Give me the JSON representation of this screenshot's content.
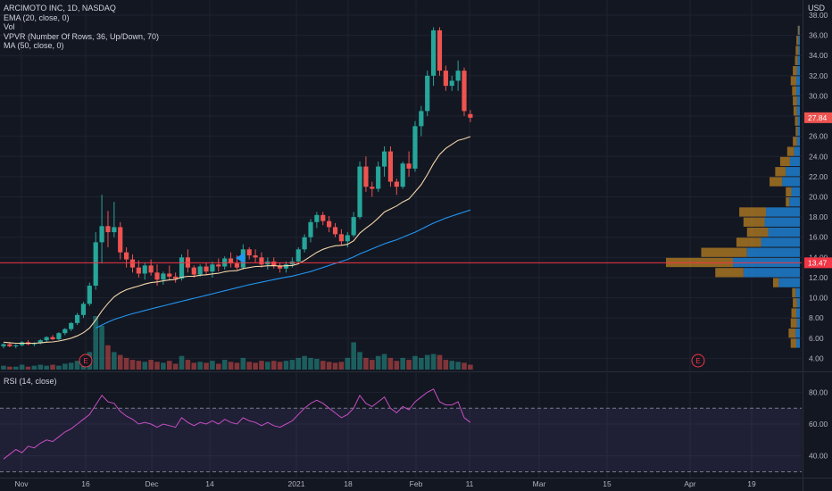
{
  "legend": {
    "title": "ARCIMOTO INC, 1D, NASDAQ",
    "ema": "EMA (20, close, 0)",
    "vol": "Vol",
    "vpvr": "VPVR (Number Of Rows, 36, Up/Down, 70)",
    "ma": "MA (50, close, 0)"
  },
  "rsi_label": "RSI (14, close)",
  "currency": "USD",
  "chart_data": {
    "type": "candlestick",
    "price_axis": {
      "ylim": [
        2.8,
        39.5
      ],
      "ticks": [
        "38.00",
        "36.00",
        "34.00",
        "32.00",
        "30.00",
        "28.00",
        "26.00",
        "24.00",
        "22.00",
        "20.00",
        "18.00",
        "16.00",
        "14.00",
        "12.00",
        "10.00",
        "8.00",
        "6.00",
        "4.00"
      ]
    },
    "rsi_axis": {
      "ylim": [
        28,
        92
      ],
      "ticks": [
        "80.00",
        "60.00",
        "40.00"
      ],
      "bands": [
        70,
        30
      ]
    },
    "x_ticks": [
      "Nov",
      "16",
      "Dec",
      "14",
      "2021",
      "18",
      "Feb",
      "11",
      "Mar",
      "15",
      "Apr",
      "19"
    ],
    "last_price": "27.84",
    "horizontal_line": {
      "value": 13.47,
      "label": "13.47",
      "color": "#f23645"
    },
    "earnings_markers": [
      "E",
      "E"
    ],
    "candles": [
      [
        5.2,
        5.5,
        5.0,
        5.4
      ],
      [
        5.4,
        5.6,
        5.1,
        5.2
      ],
      [
        5.2,
        5.4,
        5.0,
        5.3
      ],
      [
        5.3,
        5.7,
        5.2,
        5.6
      ],
      [
        5.6,
        5.8,
        5.3,
        5.4
      ],
      [
        5.4,
        5.6,
        5.2,
        5.5
      ],
      [
        5.5,
        5.9,
        5.4,
        5.8
      ],
      [
        5.8,
        6.2,
        5.6,
        6.1
      ],
      [
        6.1,
        6.3,
        5.8,
        5.9
      ],
      [
        5.9,
        6.6,
        5.8,
        6.5
      ],
      [
        6.5,
        7.0,
        6.3,
        6.9
      ],
      [
        6.9,
        7.6,
        6.7,
        7.5
      ],
      [
        7.5,
        8.5,
        7.3,
        8.3
      ],
      [
        8.3,
        9.6,
        8.0,
        9.4
      ],
      [
        9.4,
        11.5,
        9.2,
        11.2
      ],
      [
        11.2,
        16.5,
        10.8,
        15.5
      ],
      [
        15.5,
        20.2,
        13.4,
        17.1
      ],
      [
        17.1,
        18.6,
        15.0,
        16.5
      ],
      [
        16.5,
        19.5,
        16.0,
        17.0
      ],
      [
        17.0,
        17.5,
        13.8,
        14.5
      ],
      [
        14.5,
        15.0,
        13.0,
        13.8
      ],
      [
        13.8,
        14.3,
        12.5,
        13.0
      ],
      [
        13.0,
        13.7,
        12.0,
        12.4
      ],
      [
        12.4,
        13.5,
        11.8,
        13.2
      ],
      [
        13.2,
        13.8,
        12.2,
        12.5
      ],
      [
        12.5,
        13.3,
        11.2,
        11.8
      ],
      [
        11.8,
        12.6,
        11.3,
        12.4
      ],
      [
        12.4,
        13.2,
        11.8,
        12.1
      ],
      [
        12.1,
        12.5,
        11.5,
        11.9
      ],
      [
        11.9,
        14.3,
        11.7,
        14.0
      ],
      [
        14.0,
        14.8,
        12.5,
        13.0
      ],
      [
        13.0,
        13.2,
        12.0,
        12.3
      ],
      [
        12.3,
        13.3,
        12.1,
        13.1
      ],
      [
        13.1,
        13.5,
        12.3,
        12.6
      ],
      [
        12.6,
        13.6,
        12.0,
        13.3
      ],
      [
        13.3,
        13.9,
        12.6,
        13.1
      ],
      [
        13.1,
        14.1,
        12.8,
        13.9
      ],
      [
        13.9,
        14.5,
        13.0,
        13.4
      ],
      [
        13.4,
        14.2,
        12.8,
        13.0
      ],
      [
        13.0,
        15.3,
        12.8,
        14.8
      ],
      [
        14.8,
        15.0,
        13.8,
        14.2
      ],
      [
        14.2,
        14.8,
        13.5,
        14.0
      ],
      [
        14.0,
        14.5,
        13.0,
        13.3
      ],
      [
        13.3,
        14.0,
        12.8,
        13.6
      ],
      [
        13.6,
        14.0,
        12.9,
        13.2
      ],
      [
        13.2,
        13.5,
        12.5,
        12.9
      ],
      [
        12.9,
        13.6,
        12.5,
        13.3
      ],
      [
        13.3,
        14.0,
        13.0,
        13.6
      ],
      [
        13.6,
        15.0,
        13.4,
        14.8
      ],
      [
        14.8,
        16.3,
        14.5,
        16.0
      ],
      [
        16.0,
        17.8,
        15.5,
        17.5
      ],
      [
        17.5,
        18.5,
        16.9,
        18.2
      ],
      [
        18.2,
        18.5,
        17.2,
        17.6
      ],
      [
        17.6,
        18.1,
        16.5,
        17.0
      ],
      [
        17.0,
        17.4,
        16.0,
        16.3
      ],
      [
        16.3,
        16.8,
        15.2,
        15.6
      ],
      [
        15.6,
        16.5,
        15.0,
        16.2
      ],
      [
        16.2,
        18.5,
        16.0,
        18.0
      ],
      [
        18.0,
        23.5,
        17.8,
        23.0
      ],
      [
        23.0,
        24.0,
        20.5,
        21.0
      ],
      [
        21.0,
        21.5,
        20.0,
        20.8
      ],
      [
        20.8,
        23.5,
        20.5,
        23.0
      ],
      [
        23.0,
        25.0,
        22.0,
        24.5
      ],
      [
        24.5,
        25.0,
        21.0,
        21.5
      ],
      [
        21.5,
        21.8,
        20.2,
        21.0
      ],
      [
        21.0,
        23.5,
        20.8,
        23.3
      ],
      [
        23.3,
        24.5,
        22.0,
        22.8
      ],
      [
        22.8,
        27.5,
        22.5,
        27.0
      ],
      [
        27.0,
        29.0,
        26.0,
        28.5
      ],
      [
        28.5,
        32.5,
        28.0,
        32.0
      ],
      [
        32.0,
        36.8,
        31.0,
        36.5
      ],
      [
        36.5,
        36.8,
        32.0,
        32.5
      ],
      [
        32.5,
        33.0,
        30.5,
        31.0
      ],
      [
        31.0,
        32.0,
        30.5,
        31.5
      ],
      [
        31.5,
        33.5,
        30.5,
        32.5
      ],
      [
        32.5,
        32.8,
        28.0,
        28.5
      ],
      [
        28.2,
        28.6,
        27.4,
        27.84
      ]
    ],
    "volume": [
      4,
      3,
      3,
      5,
      3,
      4,
      5,
      4,
      5,
      4,
      6,
      7,
      9,
      12,
      18,
      55,
      45,
      25,
      18,
      15,
      12,
      10,
      9,
      8,
      10,
      8,
      7,
      9,
      6,
      14,
      10,
      7,
      8,
      7,
      9,
      6,
      10,
      8,
      7,
      12,
      8,
      7,
      9,
      8,
      9,
      8,
      9,
      10,
      12,
      14,
      12,
      11,
      9,
      8,
      7,
      8,
      12,
      28,
      18,
      12,
      10,
      14,
      16,
      12,
      9,
      12,
      10,
      14,
      12,
      15,
      16,
      15,
      10,
      9,
      8,
      7,
      5
    ],
    "ema20": [
      5.6,
      5.55,
      5.5,
      5.5,
      5.5,
      5.5,
      5.53,
      5.6,
      5.63,
      5.72,
      5.84,
      6.0,
      6.23,
      6.54,
      7.0,
      7.8,
      8.7,
      9.45,
      10.1,
      10.5,
      10.8,
      11.0,
      11.17,
      11.36,
      11.5,
      11.57,
      11.68,
      11.77,
      11.83,
      12.04,
      12.13,
      12.14,
      12.24,
      12.28,
      12.37,
      12.43,
      12.58,
      12.66,
      12.69,
      12.9,
      13.0,
      13.1,
      13.12,
      13.17,
      13.18,
      13.15,
      13.17,
      13.2,
      13.37,
      13.7,
      14.1,
      14.5,
      14.8,
      15.0,
      15.15,
      15.2,
      15.3,
      15.65,
      16.4,
      16.9,
      17.35,
      17.9,
      18.5,
      18.8,
      19.1,
      19.5,
      19.8,
      20.5,
      21.2,
      22.2,
      23.3,
      24.2,
      24.8,
      25.2,
      25.6,
      25.75,
      25.97
    ],
    "ma50": [
      null,
      null,
      null,
      null,
      null,
      null,
      null,
      null,
      null,
      null,
      null,
      null,
      null,
      null,
      null,
      7.0,
      7.3,
      7.6,
      7.85,
      8.05,
      8.25,
      8.42,
      8.58,
      8.74,
      8.9,
      9.05,
      9.2,
      9.35,
      9.5,
      9.65,
      9.8,
      9.95,
      10.1,
      10.25,
      10.4,
      10.55,
      10.7,
      10.85,
      11.0,
      11.15,
      11.3,
      11.42,
      11.55,
      11.68,
      11.8,
      11.93,
      12.05,
      12.15,
      12.3,
      12.45,
      12.6,
      12.8,
      13.0,
      13.2,
      13.4,
      13.6,
      13.8,
      14.05,
      14.35,
      14.6,
      14.85,
      15.1,
      15.35,
      15.55,
      15.75,
      16.0,
      16.25,
      16.5,
      16.8,
      17.1,
      17.4,
      17.65,
      17.9,
      18.1,
      18.3,
      18.5,
      18.7
    ],
    "rsi": [
      38,
      41,
      44,
      42,
      46,
      45,
      48,
      50,
      49,
      52,
      55,
      57,
      60,
      63,
      66,
      72,
      78,
      74,
      73,
      68,
      65,
      63,
      60,
      61,
      60,
      58,
      60,
      59,
      58,
      64,
      61,
      59,
      61,
      60,
      62,
      60,
      63,
      61,
      60,
      64,
      62,
      61,
      59,
      61,
      59,
      58,
      60,
      62,
      66,
      70,
      73,
      75,
      73,
      70,
      67,
      64,
      66,
      70,
      78,
      73,
      71,
      74,
      77,
      70,
      67,
      71,
      69,
      74,
      77,
      80,
      82,
      74,
      72,
      72,
      74,
      64,
      61
    ],
    "vpvr": [
      {
        "price": 5.5,
        "up": 5,
        "down": 8
      },
      {
        "price": 6.5,
        "up": 6,
        "down": 10
      },
      {
        "price": 7.5,
        "up": 4,
        "down": 9
      },
      {
        "price": 8.5,
        "up": 5,
        "down": 7
      },
      {
        "price": 9.5,
        "up": 4,
        "down": 6
      },
      {
        "price": 10.5,
        "up": 6,
        "down": 5
      },
      {
        "price": 11.5,
        "up": 30,
        "down": 8
      },
      {
        "price": 12.5,
        "up": 80,
        "down": 40
      },
      {
        "price": 13.5,
        "up": 95,
        "down": 95
      },
      {
        "price": 14.5,
        "up": 75,
        "down": 65
      },
      {
        "price": 15.5,
        "up": 55,
        "down": 35
      },
      {
        "price": 16.5,
        "up": 45,
        "down": 30
      },
      {
        "price": 17.5,
        "up": 50,
        "down": 30
      },
      {
        "price": 18.5,
        "up": 48,
        "down": 38
      },
      {
        "price": 19.5,
        "up": 15,
        "down": 5
      },
      {
        "price": 20.5,
        "up": 12,
        "down": 8
      },
      {
        "price": 21.5,
        "up": 25,
        "down": 18
      },
      {
        "price": 22.5,
        "up": 20,
        "down": 15
      },
      {
        "price": 23.5,
        "up": 14,
        "down": 14
      },
      {
        "price": 24.5,
        "up": 8,
        "down": 10
      },
      {
        "price": 25.5,
        "up": 4,
        "down": 6
      },
      {
        "price": 26.5,
        "up": 3,
        "down": 3
      },
      {
        "price": 27.5,
        "up": 3,
        "down": 4
      },
      {
        "price": 28.5,
        "up": 4,
        "down": 5
      },
      {
        "price": 29.5,
        "up": 4,
        "down": 6
      },
      {
        "price": 30.5,
        "up": 5,
        "down": 6
      },
      {
        "price": 31.5,
        "up": 5,
        "down": 8
      },
      {
        "price": 32.5,
        "up": 4,
        "down": 6
      },
      {
        "price": 33.5,
        "up": 3,
        "down": 4
      },
      {
        "price": 34.5,
        "up": 2,
        "down": 4
      },
      {
        "price": 35.5,
        "up": 2,
        "down": 3
      },
      {
        "price": 36.5,
        "up": 1,
        "down": 2
      }
    ]
  },
  "colors": {
    "up": "#26a69a",
    "down": "#ef5350",
    "ema": "#f5d6a8",
    "ma": "#2196f3",
    "rsi": "#c74fc3",
    "grid": "#1f2330",
    "hline": "#f23645"
  }
}
